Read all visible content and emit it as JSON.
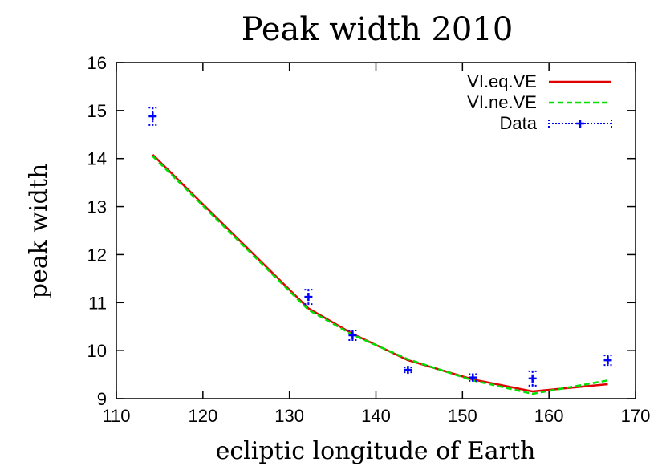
{
  "chart_data": {
    "type": "line",
    "title": "Peak width 2010",
    "xlabel": "ecliptic longitude of Earth",
    "ylabel": "peak width",
    "xlim": [
      110,
      170
    ],
    "ylim": [
      9,
      16
    ],
    "xticks": [
      110,
      120,
      130,
      140,
      150,
      160,
      170
    ],
    "yticks": [
      9,
      10,
      11,
      12,
      13,
      14,
      15,
      16
    ],
    "grid": false,
    "legend_position": "top-right",
    "series": [
      {
        "name": "VI.eq.VE",
        "style": "solid",
        "color": "#e00000",
        "x": [
          114.2,
          132.2,
          137.3,
          143.7,
          151.2,
          158.1,
          166.8
        ],
        "y": [
          14.08,
          10.88,
          10.35,
          9.8,
          9.4,
          9.15,
          9.3
        ]
      },
      {
        "name": "VI.ne.VE",
        "style": "dashed",
        "color": "#00e000",
        "x": [
          114.2,
          132.2,
          137.3,
          143.7,
          151.2,
          158.1,
          166.8
        ],
        "y": [
          14.05,
          10.85,
          10.33,
          9.82,
          9.38,
          9.1,
          9.38
        ]
      },
      {
        "name": "Data",
        "style": "errorbars",
        "color": "#0000ff",
        "x": [
          114.2,
          132.2,
          137.3,
          143.7,
          151.2,
          158.1,
          166.8
        ],
        "y": [
          14.88,
          11.12,
          10.32,
          9.6,
          9.44,
          9.42,
          9.8
        ],
        "yerr": [
          0.18,
          0.15,
          0.1,
          0.05,
          0.07,
          0.15,
          0.1
        ]
      }
    ]
  }
}
